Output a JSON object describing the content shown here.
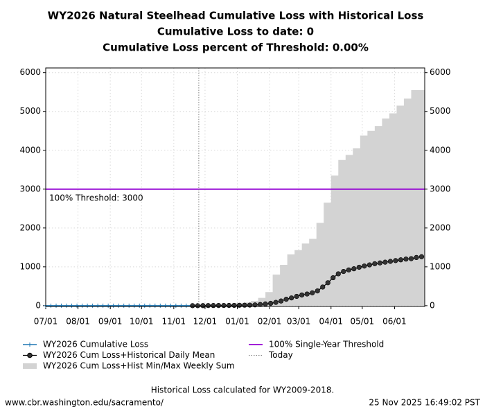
{
  "chart_data": {
    "type": "line",
    "title": [
      "WY2026 Natural Steelhead Cumulative Loss with Historical Loss",
      "Cumulative Loss to date: 0",
      "Cumulative Loss percent of Threshold: 0.00%"
    ],
    "xlim": [
      "07/01",
      "06/30"
    ],
    "xticks": [
      "07/01",
      "08/01",
      "09/01",
      "10/01",
      "11/01",
      "12/01",
      "01/01",
      "02/01",
      "03/01",
      "04/01",
      "05/01",
      "06/01"
    ],
    "ylim": [
      -20,
      6120
    ],
    "yticks": [
      0,
      1000,
      2000,
      3000,
      4000,
      5000,
      6000
    ],
    "y2lim": [
      -20,
      6120
    ],
    "y2ticks": [
      0,
      1000,
      2000,
      3000,
      4000,
      5000,
      6000
    ],
    "grid": true,
    "series": [
      {
        "name": "WY2026 Cumulative Loss",
        "color": "#1f77b4",
        "kind": "line",
        "x": [
          "07/01",
          "07/06",
          "07/11",
          "07/16",
          "07/21",
          "07/26",
          "07/31",
          "08/05",
          "08/10",
          "08/15",
          "08/20",
          "08/25",
          "08/30",
          "09/04",
          "09/09",
          "09/14",
          "09/19",
          "09/24",
          "09/29",
          "10/04",
          "10/09",
          "10/14",
          "10/19",
          "10/24",
          "10/29",
          "11/03",
          "11/08",
          "11/13",
          "11/18"
        ],
        "values": [
          0,
          0,
          0,
          0,
          0,
          0,
          0,
          0,
          0,
          0,
          0,
          0,
          0,
          0,
          0,
          0,
          0,
          0,
          0,
          0,
          0,
          0,
          0,
          0,
          0,
          0,
          0,
          0,
          0
        ]
      },
      {
        "name": "WY2026 Cum Loss+Historical Daily Mean",
        "color": "#000000",
        "kind": "dots",
        "x": [
          "11/19",
          "11/24",
          "11/29",
          "12/04",
          "12/09",
          "12/14",
          "12/19",
          "12/24",
          "12/29",
          "01/03",
          "01/08",
          "01/13",
          "01/18",
          "01/23",
          "01/28",
          "02/02",
          "02/07",
          "02/12",
          "02/17",
          "02/22",
          "02/27",
          "03/04",
          "03/09",
          "03/14",
          "03/19",
          "03/24",
          "03/29",
          "04/03",
          "04/08",
          "04/13",
          "04/18",
          "04/23",
          "04/28",
          "05/03",
          "05/08",
          "05/13",
          "05/18",
          "05/23",
          "05/28",
          "06/02",
          "06/07",
          "06/12",
          "06/17",
          "06/22",
          "06/27"
        ],
        "values": [
          0,
          0,
          2,
          3,
          4,
          5,
          6,
          7,
          8,
          10,
          12,
          15,
          20,
          30,
          45,
          60,
          85,
          120,
          165,
          200,
          240,
          275,
          300,
          330,
          380,
          480,
          590,
          720,
          820,
          880,
          920,
          950,
          990,
          1020,
          1050,
          1080,
          1100,
          1120,
          1140,
          1160,
          1180,
          1200,
          1210,
          1240,
          1260
        ]
      },
      {
        "name": "WY2026 Cum Loss+Hist Min/Max Weekly Sum",
        "color": "#d3d3d3",
        "kind": "steparea",
        "x": [
          "11/19",
          "11/26",
          "12/03",
          "12/10",
          "12/17",
          "12/24",
          "12/31",
          "01/07",
          "01/14",
          "01/21",
          "01/28",
          "02/04",
          "02/11",
          "02/18",
          "02/25",
          "03/04",
          "03/11",
          "03/18",
          "03/25",
          "04/01",
          "04/08",
          "04/15",
          "04/22",
          "04/29",
          "05/06",
          "05/13",
          "05/20",
          "05/27",
          "06/03",
          "06/10",
          "06/17",
          "06/24"
        ],
        "values": [
          0,
          10,
          15,
          20,
          25,
          40,
          60,
          80,
          120,
          200,
          350,
          800,
          1050,
          1320,
          1430,
          1600,
          1720,
          2130,
          2650,
          3350,
          3750,
          3880,
          4050,
          4380,
          4500,
          4620,
          4820,
          4950,
          5150,
          5330,
          5550,
          5550
        ]
      }
    ],
    "threshold": {
      "name": "100% Single-Year Threshold",
      "value": 3000,
      "color": "#9400d3",
      "label": "100% Threshold: 3000"
    },
    "today": {
      "name": "Today",
      "x": "11/25",
      "color": "#808080"
    },
    "footnote": "Historical Loss calculated for WY2009-2018.",
    "source": "www.cbr.washington.edu/sacramento/",
    "timestamp": "25 Nov 2025 16:49:02 PST"
  }
}
